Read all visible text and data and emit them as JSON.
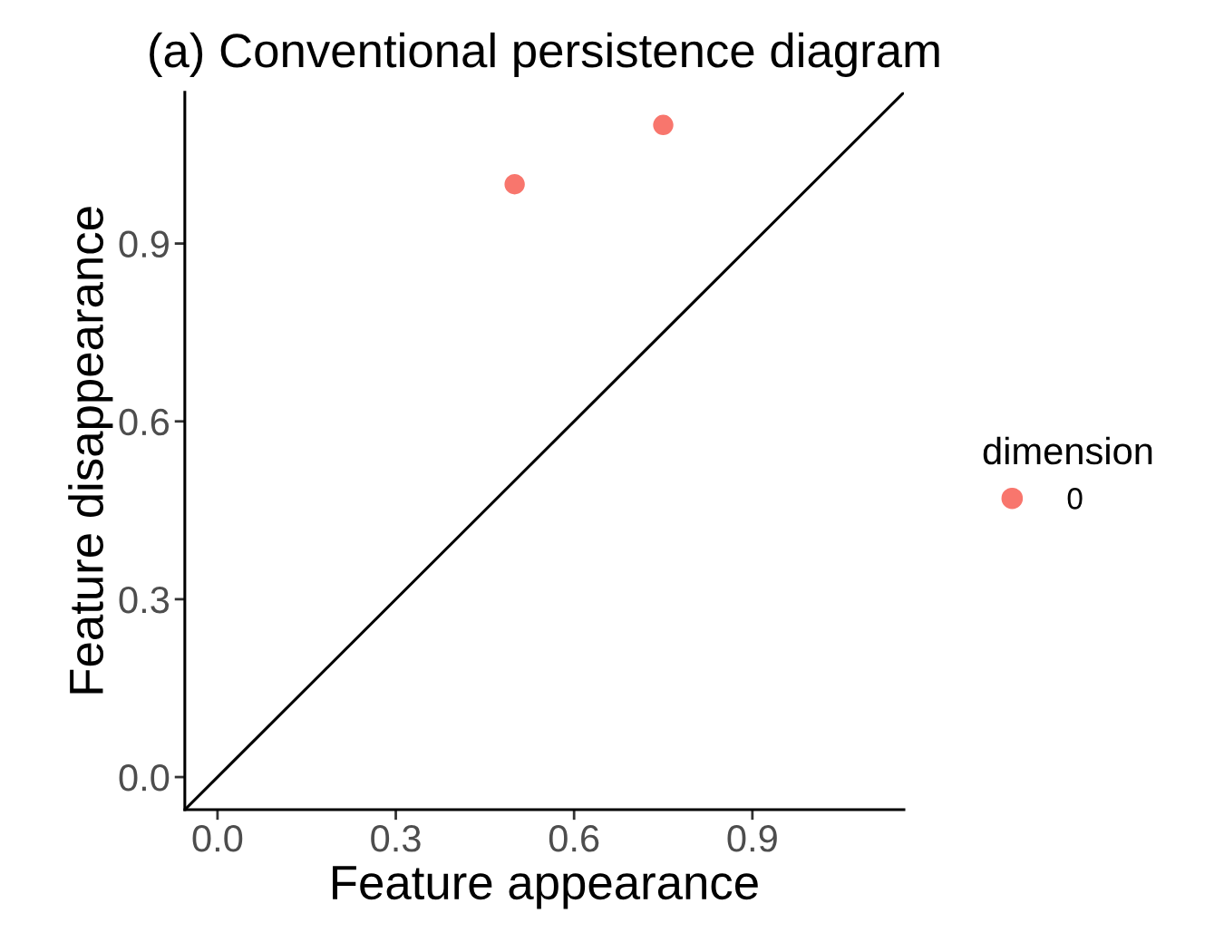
{
  "chart_data": {
    "type": "scatter",
    "title": "(a) Conventional persistence diagram",
    "xlabel": "Feature appearance",
    "ylabel": "Feature disappearance",
    "legend_title": "dimension",
    "series": [
      {
        "name": "0",
        "color": "#f8766d",
        "marker": "circle",
        "x": [
          0.5,
          0.75
        ],
        "values": [
          1.0,
          1.1
        ]
      },
      {
        "type": "line",
        "color": "#000000",
        "x": [
          -0.055,
          1.155
        ],
        "values": [
          -0.055,
          1.155
        ]
      }
    ],
    "xlim": [
      -0.055,
      1.155
    ],
    "ylim": [
      -0.055,
      1.155
    ],
    "xticks": [
      {
        "value": 0,
        "label": "0.0"
      },
      0.3,
      0.6,
      0.9
    ],
    "yticks": [
      {
        "value": 0,
        "label": "0.0"
      },
      0.3,
      0.6,
      0.9
    ],
    "grid": false,
    "legend": "right"
  }
}
